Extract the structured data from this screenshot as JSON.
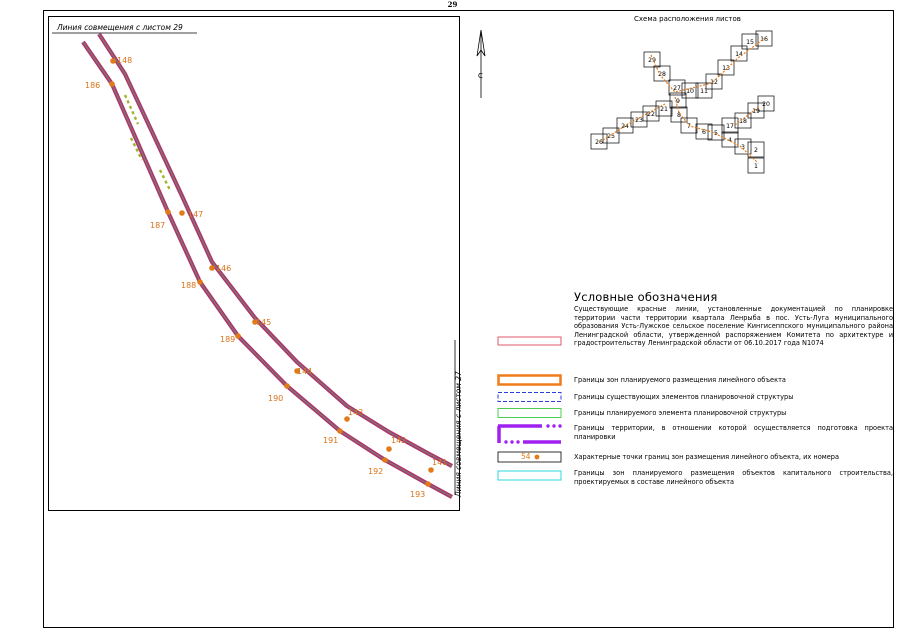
{
  "sheet": {
    "number": "29"
  },
  "map": {
    "match_line_top": "Линия совмещения с листом 29",
    "match_line_right": "Линия совмещения с листом 27",
    "north_label": "С",
    "points_left": [
      "186",
      "187",
      "188",
      "189",
      "190",
      "191",
      "192",
      "193"
    ],
    "points_right": [
      "148",
      "147",
      "146",
      "145",
      "144",
      "143",
      "142",
      "141"
    ],
    "colors": {
      "route": "#b0336a",
      "route_core": "#7a7a7a",
      "points": "#e07b1a",
      "labels": "#d9731a",
      "dashes": "#9fb52a"
    }
  },
  "scheme": {
    "title": "Схема расположения листов",
    "sheets": [
      "29",
      "28",
      "27",
      "10",
      "11",
      "12",
      "13",
      "14",
      "15",
      "16",
      "9",
      "21",
      "22",
      "23",
      "24",
      "25",
      "26",
      "8",
      "7",
      "6",
      "5",
      "4",
      "3",
      "2",
      "1",
      "17",
      "18",
      "19",
      "20"
    ]
  },
  "legend": {
    "title": "Условные обозначения",
    "items": [
      {
        "key": "red-lines",
        "text": "Существующие красные линии, установленные документацией по планировке территории части территории квартала Ленрыба в пос. Усть-Луга муниципального образования Усть-Лужское сельское поселение Кингисеппского муниципального района Ленинградской области, утвержденной распоряжением Комитета по архитектуре и градостроительству Ленинградской области от 06.10.2017 года N1074",
        "color": "#e05a6a"
      },
      {
        "key": "linear-object-zones",
        "text": "Границы зон планируемого размещения линейного объекта",
        "color": "#f07c1a"
      },
      {
        "key": "existing-elements",
        "text": "Границы существующих элементов планировочной структуры",
        "color": "#2b3fd6"
      },
      {
        "key": "planned-element",
        "text": "Границы планируемого элемента планировочной структуры",
        "color": "#4ccc4c"
      },
      {
        "key": "territory",
        "text": "Границы территории, в отношении которой осуществляется подготовка проекта планировки",
        "color": "#a020f0"
      },
      {
        "key": "points",
        "text": "Характерные точки границ зон размещения линейного объекта, их номера",
        "sample": "54",
        "color": "#e07b1a"
      },
      {
        "key": "capital-objects",
        "text": "Границы зон планируемого размещения объектов капитального строительства, проектируемых в составе линейного объекта",
        "color": "#29d8d8"
      }
    ]
  }
}
